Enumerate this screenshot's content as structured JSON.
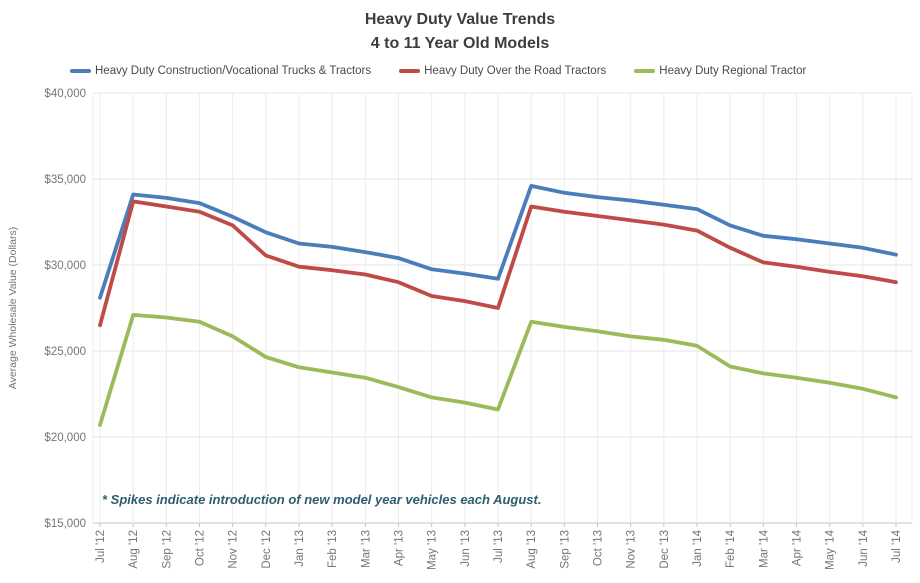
{
  "chart_data": {
    "type": "line",
    "title": "Heavy Duty Value Trends",
    "subtitle": "4 to 11 Year Old Models",
    "ylabel": "Average Wholesale Value (Dollars)",
    "xlabel": "",
    "ylim": [
      15000,
      40000
    ],
    "grid": true,
    "legend_position": "top",
    "annotation": "* Spikes indicate introduction of new model year vehicles each August.",
    "yticks": [
      {
        "value": 15000,
        "label": "$15,000"
      },
      {
        "value": 20000,
        "label": "$20,000"
      },
      {
        "value": 25000,
        "label": "$25,000"
      },
      {
        "value": 30000,
        "label": "$30,000"
      },
      {
        "value": 35000,
        "label": "$35,000"
      },
      {
        "value": 40000,
        "label": "$40,000"
      }
    ],
    "categories": [
      "Jul '12",
      "Aug '12",
      "Sep '12",
      "Oct '12",
      "Nov '12",
      "Dec '12",
      "Jan '13",
      "Feb '13",
      "Mar '13",
      "Apr '13",
      "May '13",
      "Jun '13",
      "Jul '13",
      "Aug '13",
      "Sep '13",
      "Oct '13",
      "Nov '13",
      "Dec '13",
      "Jan '14",
      "Feb '14",
      "Mar '14",
      "Apr '14",
      "May '14",
      "Jun '14",
      "Jul '14"
    ],
    "series": [
      {
        "name": "Heavy Duty Construction/Vocational Trucks & Tractors",
        "color": "#4a7eba",
        "values": [
          28100,
          34100,
          33900,
          33600,
          32800,
          31900,
          31250,
          31050,
          30750,
          30400,
          29750,
          29500,
          29200,
          34600,
          34200,
          33950,
          33750,
          33500,
          33250,
          32300,
          31700,
          31500,
          31250,
          31000,
          30600
        ]
      },
      {
        "name": "Heavy Duty Over the Road Tractors",
        "color": "#bf4b47",
        "values": [
          26500,
          33700,
          33400,
          33100,
          32300,
          30550,
          29900,
          29700,
          29450,
          29000,
          28200,
          27900,
          27500,
          33400,
          33100,
          32850,
          32600,
          32350,
          32000,
          31000,
          30150,
          29900,
          29600,
          29350,
          29000
        ]
      },
      {
        "name": "Heavy Duty Regional Tractor",
        "color": "#9cba5a",
        "values": [
          20700,
          27100,
          26950,
          26700,
          25850,
          24650,
          24050,
          23750,
          23450,
          22900,
          22300,
          22000,
          21600,
          26700,
          26400,
          26150,
          25850,
          25650,
          25300,
          24100,
          23700,
          23450,
          23150,
          22800,
          22300
        ]
      }
    ]
  },
  "colors": {
    "title_text": "#3d3d3d",
    "axis_text": "#757575",
    "legend_text": "#4a4a4a",
    "annotation_text": "#2e5d70",
    "gridline": "#e6e6e6",
    "vertical_gridline": "#ececec",
    "axis_line": "#c4c4c4"
  }
}
